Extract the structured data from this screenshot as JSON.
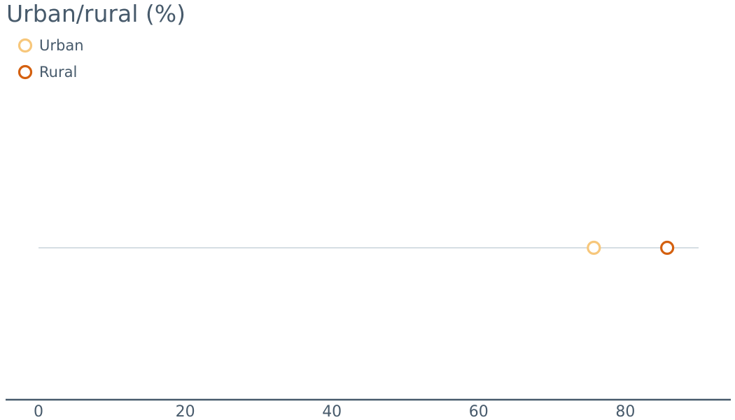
{
  "chart_data": {
    "type": "scatter",
    "title": "Urban/rural (%)",
    "xlabel": "",
    "ylabel": "",
    "xlim": [
      0,
      90
    ],
    "x_ticks": [
      0,
      20,
      40,
      60,
      80
    ],
    "x_tick_labels": [
      "0",
      "20",
      "40",
      "60",
      "80"
    ],
    "grid": false,
    "legend_position": "top-left",
    "series": [
      {
        "name": "Urban",
        "color": "#f7c77b",
        "values": [
          75.7
        ]
      },
      {
        "name": "Rural",
        "color": "#d4600f",
        "values": [
          85.7
        ]
      }
    ]
  },
  "colors": {
    "text": "#475a6b",
    "axis": "#475a6b",
    "track": "#d6dee3"
  }
}
